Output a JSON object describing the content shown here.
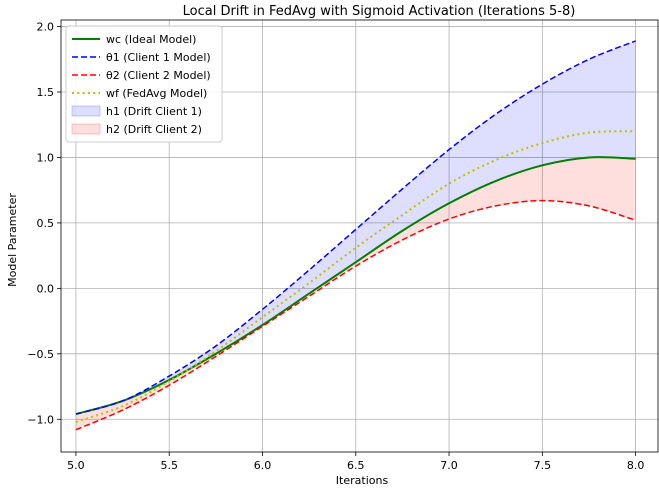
{
  "chart_data": {
    "type": "line",
    "title": "Local Drift in FedAvg with Sigmoid Activation (Iterations 5-8)",
    "xlabel": "Iterations",
    "ylabel": "Model Parameter",
    "xlim": [
      4.92,
      8.12
    ],
    "ylim": [
      -1.25,
      2.05
    ],
    "xticks": [
      5.0,
      5.5,
      6.0,
      6.5,
      7.0,
      7.5,
      8.0
    ],
    "xtick_labels": [
      "5.0",
      "5.5",
      "6.0",
      "6.5",
      "7.0",
      "7.5",
      "8.0"
    ],
    "yticks": [
      -1.0,
      -0.5,
      0.0,
      0.5,
      1.0,
      1.5,
      2.0
    ],
    "ytick_labels": [
      "−1.0",
      "−0.5",
      "0.0",
      "0.5",
      "1.0",
      "1.5",
      "2.0"
    ],
    "grid": true,
    "legend_position": "top-left",
    "x": [
      5.0,
      5.25,
      5.5,
      5.75,
      6.0,
      6.25,
      6.5,
      6.75,
      7.0,
      7.25,
      7.5,
      7.75,
      8.0
    ],
    "series": [
      {
        "name": "wc (Ideal Model)",
        "color": "#008000",
        "style": "solid",
        "width": 2,
        "values": [
          -0.96,
          -0.86,
          -0.7,
          -0.5,
          -0.28,
          -0.04,
          0.2,
          0.44,
          0.65,
          0.82,
          0.94,
          1.0,
          0.99
        ]
      },
      {
        "name": "θ1 (Client 1 Model)",
        "color": "#0000ff",
        "style": "dashed",
        "width": 1.5,
        "values": [
          -0.96,
          -0.86,
          -0.67,
          -0.44,
          -0.16,
          0.14,
          0.45,
          0.76,
          1.06,
          1.33,
          1.56,
          1.75,
          1.89
        ]
      },
      {
        "name": "θ2 (Client 2 Model)",
        "color": "#ff0000",
        "style": "dashed",
        "width": 1.5,
        "values": [
          -1.08,
          -0.93,
          -0.74,
          -0.52,
          -0.29,
          -0.06,
          0.17,
          0.37,
          0.53,
          0.63,
          0.67,
          0.63,
          0.52
        ]
      },
      {
        "name": "wf (FedAvg Model)",
        "color": "#bfbf00",
        "style": "dotted",
        "width": 2,
        "values": [
          -1.02,
          -0.9,
          -0.71,
          -0.48,
          -0.22,
          0.04,
          0.31,
          0.56,
          0.8,
          0.98,
          1.11,
          1.19,
          1.2
        ]
      }
    ],
    "fills": [
      {
        "name": "h1 (Drift Client 1)",
        "color": "#0000ff",
        "opacity": 0.13,
        "between": [
          1,
          0
        ]
      },
      {
        "name": "h2 (Drift Client 2)",
        "color": "#ff0000",
        "opacity": 0.13,
        "between": [
          0,
          2
        ]
      }
    ]
  }
}
